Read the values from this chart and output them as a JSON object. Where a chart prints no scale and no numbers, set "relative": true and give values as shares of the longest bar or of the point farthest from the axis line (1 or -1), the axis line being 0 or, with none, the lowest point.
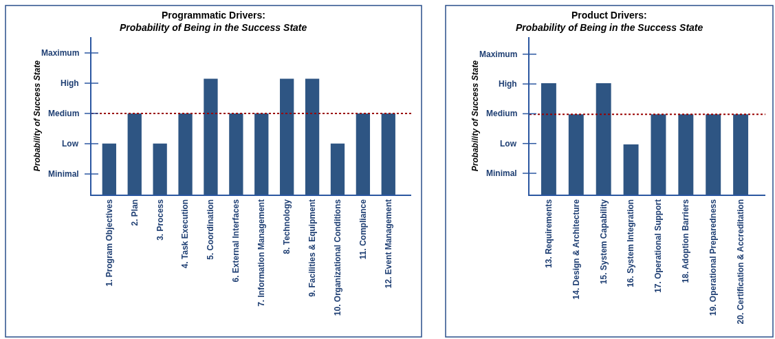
{
  "chart_data": [
    {
      "type": "bar",
      "relative": true,
      "title": "Programmatic Drivers:",
      "subtitle": "Probability of Being in the Success State",
      "ylabel": "Probability of Success State",
      "categories": [
        "1. Program Objectives",
        "2. Plan",
        "3. Process",
        "4. Task Execution",
        "5. Coordination",
        "6. External Interfaces",
        "7. Information Management",
        "8. Technology",
        "9. Facilities & Equipment",
        "10. Organizational Conditions",
        "11. Compliance",
        "12. Event Management"
      ],
      "values": [
        0.44,
        0.7,
        0.44,
        0.7,
        1,
        0.7,
        0.7,
        1,
        1,
        0.44,
        0.7,
        0.7
      ],
      "color": "#2e5583",
      "annotations": [
        "Minimal",
        "Low",
        "Medium",
        "High",
        "Maximum"
      ],
      "ref_lines": [
        {
          "axis": "y",
          "value": 0.7,
          "color": "#990000",
          "line_style": "dotted"
        }
      ]
    },
    {
      "type": "bar",
      "relative": true,
      "title": "Product Drivers:",
      "subtitle": "Probability of Being in the Success State",
      "ylabel": "Probability of Success State",
      "categories": [
        "13. Requirements",
        "14. Design & Architecture",
        "15. System Capability",
        "16. System Integration",
        "17. Operational Support",
        "18. Adoption Barriers",
        "19. Operational Preparedness",
        "20. Certification & Accreditation"
      ],
      "values": [
        1,
        0.72,
        1,
        0.45,
        0.72,
        0.72,
        0.72,
        0.72
      ],
      "color": "#2e5583",
      "annotations": [
        "Minimal",
        "Low",
        "Medium",
        "High",
        "Maximum"
      ],
      "ref_lines": [
        {
          "axis": "y",
          "value": 0.72,
          "color": "#990000",
          "line_style": "dotted"
        }
      ]
    }
  ]
}
